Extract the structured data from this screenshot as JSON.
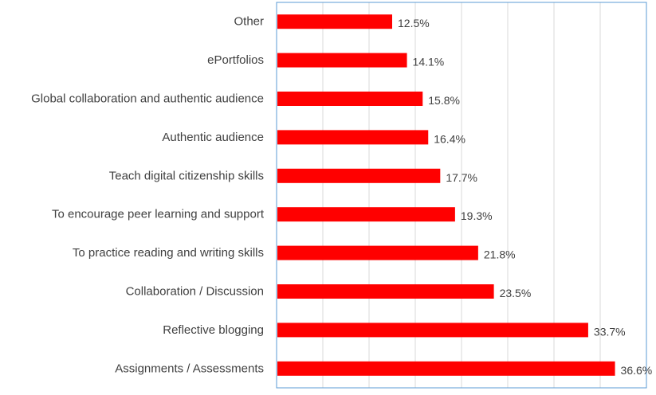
{
  "chart_data": {
    "type": "bar",
    "orientation": "horizontal",
    "categories": [
      "Other",
      "ePortfolios",
      "Global collaboration and authentic audience",
      "Authentic audience",
      "Teach digital citizenship skills",
      "To encourage peer learning and support",
      "To practice reading and writing skills",
      "Collaboration / Discussion",
      "Reflective blogging",
      "Assignments / Assessments"
    ],
    "values": [
      12.5,
      14.1,
      15.8,
      16.4,
      17.7,
      19.3,
      21.8,
      23.5,
      33.7,
      36.6
    ],
    "data_labels": [
      "12.5%",
      "14.1%",
      "15.8%",
      "16.4%",
      "17.7%",
      "19.3%",
      "21.8%",
      "23.5%",
      "33.7%",
      "36.6%"
    ],
    "title": "",
    "xlabel": "",
    "ylabel": "",
    "xlim": [
      0,
      40
    ],
    "grid": true,
    "legend": "none",
    "colors": {
      "bar": "#ff0000",
      "gridline": "#d9d9d9",
      "frame": "#5b9bd5",
      "text": "#404040"
    }
  }
}
